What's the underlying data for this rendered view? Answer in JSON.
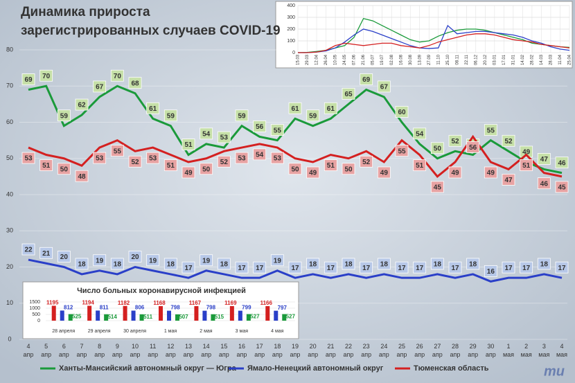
{
  "chart_data": [
    {
      "type": "line",
      "title_lines": [
        "Динамика прироста",
        "зарегистрированных случаев COVID-19"
      ],
      "categories": [
        "4 апр",
        "5 апр",
        "6 апр",
        "7 апр",
        "8 апр",
        "9 апр",
        "10 апр",
        "11 апр",
        "12 апр",
        "13 апр",
        "14 апр",
        "15 апр",
        "16 апр",
        "17 апр",
        "18 апр",
        "19 апр",
        "20 апр",
        "21 апр",
        "22 апр",
        "23 апр",
        "24 апр",
        "25 апр",
        "26 апр",
        "27 апр",
        "28 апр",
        "29 апр",
        "30 апр",
        "1 мая",
        "2 мая",
        "3 мая",
        "4 мая"
      ],
      "series": [
        {
          "name": "Ханты-Мансийский автономный округ — Югра",
          "color": "#1a9a3a",
          "label_color": "#c6e0a8",
          "values": [
            69,
            70,
            59,
            62,
            67,
            70,
            68,
            61,
            59,
            51,
            54,
            53,
            59,
            56,
            55,
            61,
            59,
            61,
            65,
            69,
            67,
            60,
            54,
            50,
            52,
            51,
            55,
            52,
            49,
            47,
            46
          ]
        },
        {
          "name": "Ямало-Ненецкий автономный округ",
          "color": "#2a3fc8",
          "label_color": "#b7c8e8",
          "values": [
            22,
            21,
            20,
            18,
            19,
            18,
            20,
            19,
            18,
            17,
            19,
            18,
            17,
            17,
            19,
            17,
            18,
            17,
            18,
            17,
            18,
            17,
            17,
            18,
            17,
            18,
            16,
            17,
            17,
            18,
            17
          ]
        },
        {
          "name": "Тюменская область",
          "color": "#d42020",
          "label_color": "#e8a3a3",
          "values": [
            53,
            51,
            50,
            48,
            53,
            55,
            52,
            53,
            51,
            49,
            50,
            52,
            53,
            54,
            53,
            50,
            49,
            51,
            50,
            52,
            49,
            55,
            51,
            45,
            49,
            56,
            49,
            47,
            51,
            46,
            45
          ]
        }
      ],
      "ylim": [
        0,
        80
      ],
      "yticks": [
        0,
        10,
        20,
        30,
        40,
        50,
        60,
        70,
        80
      ],
      "grid": true
    },
    {
      "type": "line",
      "categories": [
        "15.03",
        "29.03",
        "12.04",
        "26.04",
        "10.05",
        "24.05",
        "07.06",
        "21.06",
        "05.07",
        "19.07",
        "02.08",
        "16.08",
        "30.08",
        "13.09",
        "27.09",
        "11.10",
        "25.10",
        "08.11",
        "22.11",
        "06.12",
        "20.12",
        "03.01",
        "17.01",
        "31.01",
        "14.02",
        "28.02",
        "14.03",
        "28.03",
        "11.04",
        "25.04"
      ],
      "series": [
        {
          "color": "#1a9a3a",
          "values": [
            0,
            2,
            10,
            20,
            40,
            60,
            130,
            290,
            270,
            230,
            190,
            150,
            110,
            90,
            100,
            140,
            170,
            190,
            200,
            200,
            190,
            170,
            150,
            130,
            110,
            80,
            70,
            60,
            50,
            45
          ]
        },
        {
          "color": "#2a3fc8",
          "values": [
            0,
            0,
            5,
            15,
            40,
            90,
            150,
            200,
            180,
            150,
            120,
            90,
            60,
            40,
            35,
            40,
            230,
            160,
            170,
            180,
            180,
            170,
            160,
            150,
            130,
            100,
            80,
            50,
            30,
            20
          ]
        },
        {
          "color": "#d42020",
          "values": [
            0,
            0,
            5,
            20,
            60,
            80,
            70,
            60,
            70,
            80,
            80,
            60,
            50,
            40,
            60,
            90,
            110,
            130,
            150,
            160,
            160,
            150,
            130,
            110,
            100,
            90,
            70,
            60,
            50,
            40
          ]
        }
      ],
      "ylim": [
        0,
        400
      ],
      "yticks": [
        0,
        100,
        200,
        300,
        400
      ],
      "grid": true
    },
    {
      "type": "bar",
      "title": "Число больных коронавирусной  инфекцией",
      "categories": [
        "28 апреля",
        "29 апреля",
        "30 апреля",
        "1 мая",
        "2 мая",
        "3 мая",
        "4 мая"
      ],
      "series": [
        {
          "color": "#d42020",
          "values": [
            1195,
            1194,
            1182,
            1168,
            1167,
            1169,
            1166
          ]
        },
        {
          "color": "#2a3fc8",
          "values": [
            812,
            811,
            806,
            798,
            798,
            799,
            797
          ]
        },
        {
          "color": "#1a9a3a",
          "values": [
            525,
            514,
            511,
            507,
            515,
            527,
            527
          ]
        }
      ],
      "ylim": [
        0,
        1500
      ],
      "yticks": [
        0,
        500,
        1000,
        1500
      ]
    },
    {
      "type": "logo",
      "text": "mu"
    }
  ]
}
